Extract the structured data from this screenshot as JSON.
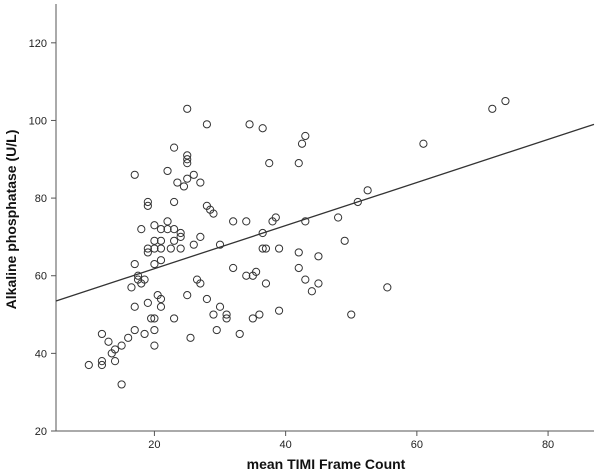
{
  "chart_data": {
    "type": "scatter",
    "title": "",
    "xlabel": "mean TIMI Frame Count",
    "ylabel": "Alkaline phosphatase (U/L)",
    "xlim": [
      5,
      87
    ],
    "ylim": [
      20,
      130
    ],
    "xticks": [
      20,
      40,
      60,
      80
    ],
    "yticks": [
      20,
      40,
      60,
      80,
      100,
      120
    ],
    "grid": false,
    "legend": "none",
    "marker": "open-circle",
    "colors": {
      "marker": "#333333",
      "line": "#333333",
      "axis": "#555555"
    },
    "fit_line": {
      "x": [
        5,
        87
      ],
      "y": [
        53.5,
        99.0
      ]
    },
    "points": [
      [
        10.0,
        37
      ],
      [
        12.0,
        38
      ],
      [
        12.0,
        37
      ],
      [
        12.0,
        45
      ],
      [
        13.0,
        43
      ],
      [
        13.5,
        40
      ],
      [
        14.0,
        41
      ],
      [
        14.0,
        38
      ],
      [
        15.0,
        32
      ],
      [
        15.0,
        42
      ],
      [
        16.0,
        44
      ],
      [
        16.5,
        57
      ],
      [
        17.0,
        86
      ],
      [
        17.0,
        63
      ],
      [
        17.0,
        52
      ],
      [
        17.0,
        46
      ],
      [
        17.5,
        60
      ],
      [
        17.5,
        59
      ],
      [
        18.0,
        72
      ],
      [
        18.0,
        58
      ],
      [
        18.5,
        59
      ],
      [
        18.5,
        45
      ],
      [
        19.0,
        78
      ],
      [
        19.0,
        79
      ],
      [
        19.0,
        67
      ],
      [
        19.0,
        66
      ],
      [
        19.0,
        53
      ],
      [
        19.5,
        49
      ],
      [
        20.0,
        73
      ],
      [
        20.0,
        69
      ],
      [
        20.0,
        67
      ],
      [
        20.0,
        63
      ],
      [
        20.0,
        49
      ],
      [
        20.0,
        46
      ],
      [
        20.0,
        42
      ],
      [
        20.5,
        55
      ],
      [
        21.0,
        72
      ],
      [
        21.0,
        69
      ],
      [
        21.0,
        67
      ],
      [
        21.0,
        64
      ],
      [
        21.0,
        54
      ],
      [
        21.0,
        52
      ],
      [
        22.0,
        87
      ],
      [
        22.0,
        74
      ],
      [
        22.0,
        72
      ],
      [
        22.5,
        67
      ],
      [
        23.0,
        93
      ],
      [
        23.0,
        79
      ],
      [
        23.0,
        72
      ],
      [
        23.0,
        69
      ],
      [
        23.0,
        49
      ],
      [
        23.5,
        84
      ],
      [
        24.0,
        71
      ],
      [
        24.0,
        70
      ],
      [
        24.0,
        67
      ],
      [
        24.5,
        83
      ],
      [
        25.0,
        91
      ],
      [
        25.0,
        90
      ],
      [
        25.0,
        89
      ],
      [
        25.0,
        85
      ],
      [
        25.0,
        55
      ],
      [
        25.0,
        103
      ],
      [
        25.5,
        44
      ],
      [
        26.0,
        86
      ],
      [
        26.0,
        68
      ],
      [
        26.5,
        59
      ],
      [
        27.0,
        84
      ],
      [
        27.0,
        70
      ],
      [
        27.0,
        58
      ],
      [
        28.0,
        99
      ],
      [
        28.0,
        78
      ],
      [
        28.0,
        54
      ],
      [
        28.5,
        77
      ],
      [
        29.0,
        76
      ],
      [
        29.0,
        50
      ],
      [
        29.5,
        46
      ],
      [
        30.0,
        68
      ],
      [
        30.0,
        52
      ],
      [
        31.0,
        49
      ],
      [
        31.0,
        50
      ],
      [
        32.0,
        74
      ],
      [
        32.0,
        62
      ],
      [
        33.0,
        45
      ],
      [
        34.0,
        74
      ],
      [
        34.0,
        60
      ],
      [
        34.5,
        99
      ],
      [
        35.0,
        60
      ],
      [
        35.0,
        49
      ],
      [
        35.5,
        61
      ],
      [
        36.0,
        50
      ],
      [
        36.5,
        98
      ],
      [
        36.5,
        71
      ],
      [
        36.5,
        67
      ],
      [
        37.0,
        67
      ],
      [
        37.0,
        58
      ],
      [
        37.5,
        89
      ],
      [
        38.0,
        74
      ],
      [
        38.5,
        75
      ],
      [
        39.0,
        67
      ],
      [
        39.0,
        51
      ],
      [
        42.0,
        89
      ],
      [
        42.0,
        66
      ],
      [
        42.0,
        62
      ],
      [
        42.5,
        94
      ],
      [
        43.0,
        96
      ],
      [
        43.0,
        74
      ],
      [
        43.0,
        59
      ],
      [
        44.0,
        56
      ],
      [
        45.0,
        58
      ],
      [
        45.0,
        65
      ],
      [
        48.0,
        75
      ],
      [
        49.0,
        69
      ],
      [
        50.0,
        50
      ],
      [
        51.0,
        79
      ],
      [
        52.5,
        82
      ],
      [
        55.5,
        57
      ],
      [
        61.0,
        94
      ],
      [
        71.5,
        103
      ],
      [
        73.5,
        105
      ]
    ]
  }
}
